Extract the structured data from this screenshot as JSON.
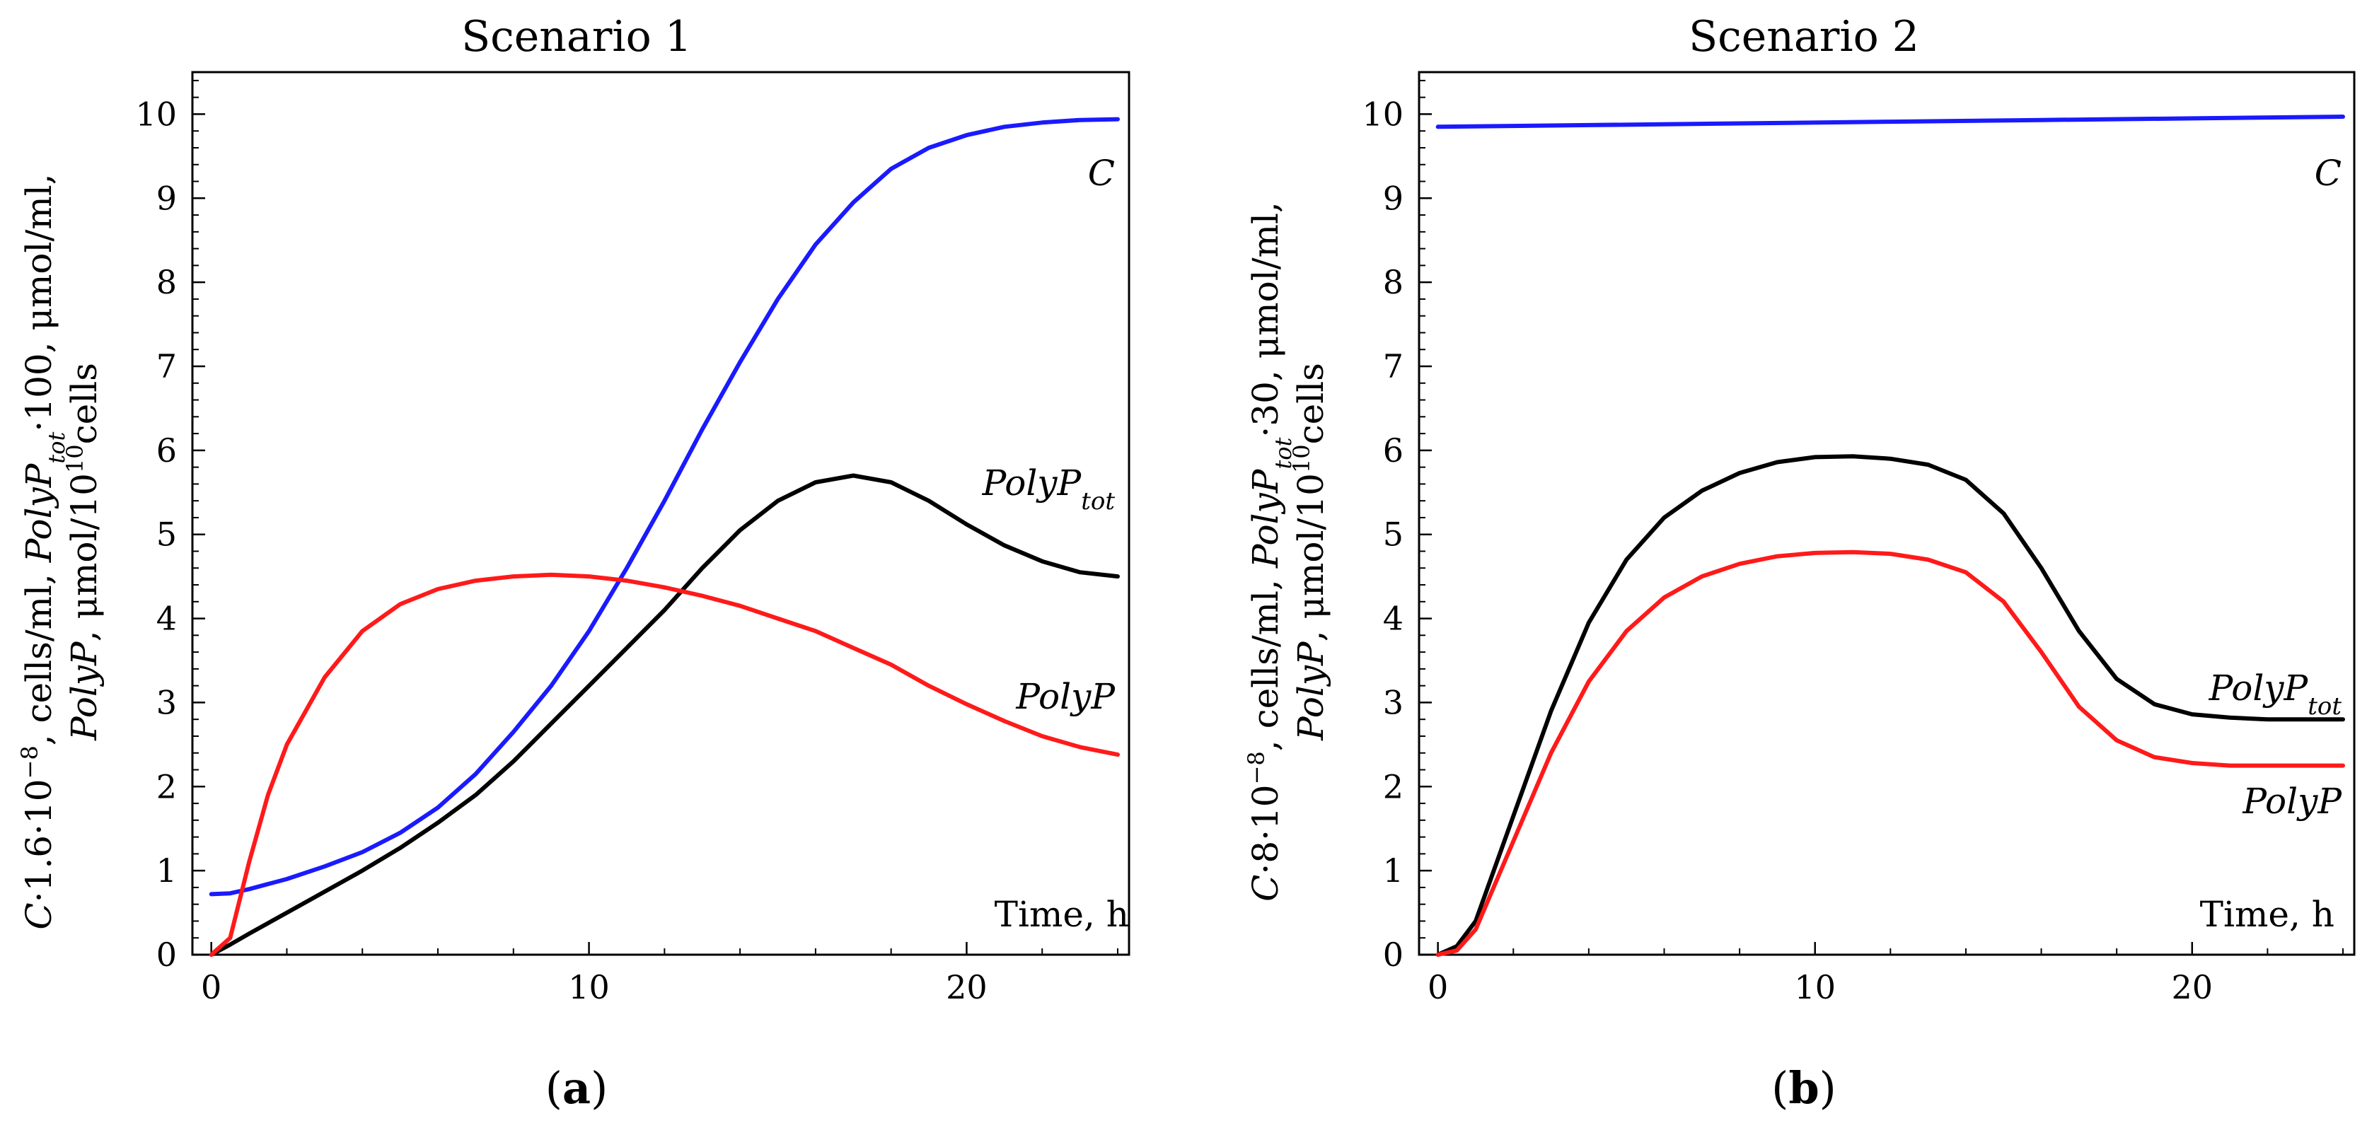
{
  "chart_data": [
    {
      "type": "line",
      "title": "Scenario 1",
      "panel_label": "a",
      "xlabel": "Time, h",
      "ylabel": {
        "line1_parts": [
          "C",
          "·1.6·10",
          "−8",
          ", cells/ml, ",
          "PolyP",
          "tot",
          "·100, μmol/ml,"
        ],
        "line2_parts": [
          "PolyP",
          ", μmol/10",
          "10",
          "cells"
        ]
      },
      "xlim": [
        -0.5,
        24.3
      ],
      "ylim": [
        0,
        10.5
      ],
      "xticks": [
        0,
        10,
        20
      ],
      "yticks": [
        0,
        1,
        2,
        3,
        4,
        5,
        6,
        7,
        8,
        9,
        10
      ],
      "series": [
        {
          "name": "C",
          "label": "C",
          "color": "#1a1aff",
          "x": [
            0,
            0.5,
            1,
            2,
            3,
            4,
            5,
            6,
            7,
            8,
            9,
            10,
            11,
            12,
            13,
            14,
            15,
            16,
            17,
            18,
            19,
            20,
            21,
            22,
            23,
            24
          ],
          "y": [
            0.72,
            0.73,
            0.78,
            0.9,
            1.05,
            1.22,
            1.45,
            1.75,
            2.15,
            2.65,
            3.2,
            3.85,
            4.6,
            5.4,
            6.25,
            7.05,
            7.8,
            8.45,
            8.95,
            9.35,
            9.6,
            9.75,
            9.85,
            9.9,
            9.93,
            9.94
          ]
        },
        {
          "name": "PolyP_tot",
          "label_main": "PolyP",
          "label_sub": "tot",
          "color": "#000000",
          "x": [
            0,
            0.5,
            1,
            2,
            3,
            4,
            5,
            6,
            7,
            8,
            9,
            10,
            11,
            12,
            13,
            14,
            15,
            16,
            17,
            18,
            19,
            20,
            21,
            22,
            23,
            24
          ],
          "y": [
            0,
            0.12,
            0.25,
            0.5,
            0.75,
            1.0,
            1.27,
            1.57,
            1.9,
            2.3,
            2.75,
            3.2,
            3.65,
            4.1,
            4.6,
            5.05,
            5.4,
            5.62,
            5.7,
            5.62,
            5.4,
            5.12,
            4.87,
            4.68,
            4.55,
            4.5
          ]
        },
        {
          "name": "PolyP",
          "label_main": "PolyP",
          "color": "#ff1a1a",
          "x": [
            0,
            0.5,
            1,
            1.5,
            2,
            3,
            4,
            5,
            6,
            7,
            8,
            9,
            10,
            11,
            12,
            13,
            14,
            15,
            16,
            17,
            18,
            19,
            20,
            21,
            22,
            23,
            24
          ],
          "y": [
            0,
            0.2,
            1.1,
            1.9,
            2.5,
            3.3,
            3.85,
            4.17,
            4.35,
            4.45,
            4.5,
            4.52,
            4.5,
            4.45,
            4.37,
            4.27,
            4.15,
            4.0,
            3.85,
            3.65,
            3.45,
            3.2,
            2.98,
            2.78,
            2.6,
            2.47,
            2.38
          ]
        }
      ]
    },
    {
      "type": "line",
      "title": "Scenario 2",
      "panel_label": "b",
      "xlabel": "Time, h",
      "ylabel": {
        "line1_parts": [
          "C",
          "·8·10",
          "−8",
          ", cells/ml, ",
          "PolyP",
          "tot",
          "·30, μmol/ml,"
        ],
        "line2_parts": [
          "PolyP",
          ", μmol/10",
          "10",
          "cells"
        ]
      },
      "xlim": [
        -0.5,
        24.3
      ],
      "ylim": [
        0,
        10.5
      ],
      "xticks": [
        0,
        10,
        20
      ],
      "yticks": [
        0,
        1,
        2,
        3,
        4,
        5,
        6,
        7,
        8,
        9,
        10
      ],
      "series": [
        {
          "name": "C",
          "label": "C",
          "color": "#1a1aff",
          "x": [
            0,
            4,
            8,
            12,
            16,
            20,
            24
          ],
          "y": [
            9.85,
            9.87,
            9.89,
            9.91,
            9.93,
            9.95,
            9.97
          ]
        },
        {
          "name": "PolyP_tot",
          "label_main": "PolyP",
          "label_sub": "tot",
          "color": "#000000",
          "x": [
            0,
            0.5,
            1,
            2,
            3,
            4,
            5,
            6,
            7,
            8,
            9,
            10,
            11,
            12,
            13,
            14,
            15,
            16,
            17,
            18,
            19,
            20,
            21,
            22,
            23,
            24
          ],
          "y": [
            0,
            0.1,
            0.4,
            1.65,
            2.9,
            3.95,
            4.7,
            5.2,
            5.52,
            5.73,
            5.86,
            5.92,
            5.93,
            5.9,
            5.83,
            5.65,
            5.25,
            4.6,
            3.85,
            3.28,
            2.98,
            2.86,
            2.82,
            2.8,
            2.8,
            2.8
          ]
        },
        {
          "name": "PolyP",
          "label_main": "PolyP",
          "color": "#ff1a1a",
          "x": [
            0,
            0.5,
            1,
            2,
            3,
            4,
            5,
            6,
            7,
            8,
            9,
            10,
            11,
            12,
            13,
            14,
            15,
            16,
            17,
            18,
            19,
            20,
            21,
            22,
            23,
            24
          ],
          "y": [
            0,
            0.05,
            0.3,
            1.35,
            2.4,
            3.25,
            3.85,
            4.25,
            4.5,
            4.65,
            4.74,
            4.78,
            4.79,
            4.77,
            4.7,
            4.55,
            4.2,
            3.6,
            2.95,
            2.55,
            2.35,
            2.28,
            2.25,
            2.25,
            2.25,
            2.25
          ]
        }
      ]
    }
  ]
}
